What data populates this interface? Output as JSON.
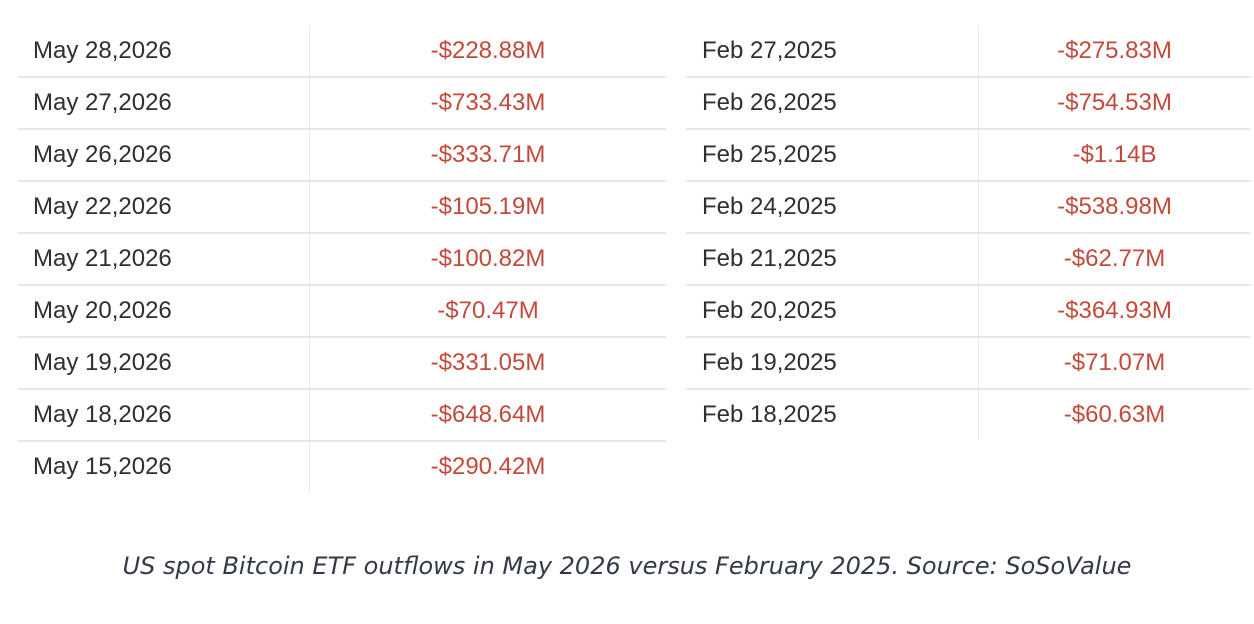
{
  "chart_data": {
    "type": "table",
    "tables": [
      {
        "rows": [
          {
            "date": "May 28,2026",
            "flow": "-$228.88M",
            "value_musd": -228.88
          },
          {
            "date": "May 27,2026",
            "flow": "-$733.43M",
            "value_musd": -733.43
          },
          {
            "date": "May 26,2026",
            "flow": "-$333.71M",
            "value_musd": -333.71
          },
          {
            "date": "May 22,2026",
            "flow": "-$105.19M",
            "value_musd": -105.19
          },
          {
            "date": "May 21,2026",
            "flow": "-$100.82M",
            "value_musd": -100.82
          },
          {
            "date": "May 20,2026",
            "flow": "-$70.47M",
            "value_musd": -70.47
          },
          {
            "date": "May 19,2026",
            "flow": "-$331.05M",
            "value_musd": -331.05
          },
          {
            "date": "May 18,2026",
            "flow": "-$648.64M",
            "value_musd": -648.64
          },
          {
            "date": "May 15,2026",
            "flow": "-$290.42M",
            "value_musd": -290.42
          }
        ]
      },
      {
        "rows": [
          {
            "date": "Feb 27,2025",
            "flow": "-$275.83M",
            "value_musd": -275.83
          },
          {
            "date": "Feb 26,2025",
            "flow": "-$754.53M",
            "value_musd": -754.53
          },
          {
            "date": "Feb 25,2025",
            "flow": "-$1.14B",
            "value_musd": -1140
          },
          {
            "date": "Feb 24,2025",
            "flow": "-$538.98M",
            "value_musd": -538.98
          },
          {
            "date": "Feb 21,2025",
            "flow": "-$62.77M",
            "value_musd": -62.77
          },
          {
            "date": "Feb 20,2025",
            "flow": "-$364.93M",
            "value_musd": -364.93
          },
          {
            "date": "Feb 19,2025",
            "flow": "-$71.07M",
            "value_musd": -71.07
          },
          {
            "date": "Feb 18,2025",
            "flow": "-$60.63M",
            "value_musd": -60.63
          }
        ]
      }
    ],
    "caption": "US spot Bitcoin ETF outflows in May 2026 versus February 2025. Source: SoSoValue"
  },
  "colors": {
    "outflow_text": "#c24a3b",
    "date_text": "#2f2f2f",
    "caption_text": "#333a46",
    "row_divider": "#e6e6e6"
  }
}
